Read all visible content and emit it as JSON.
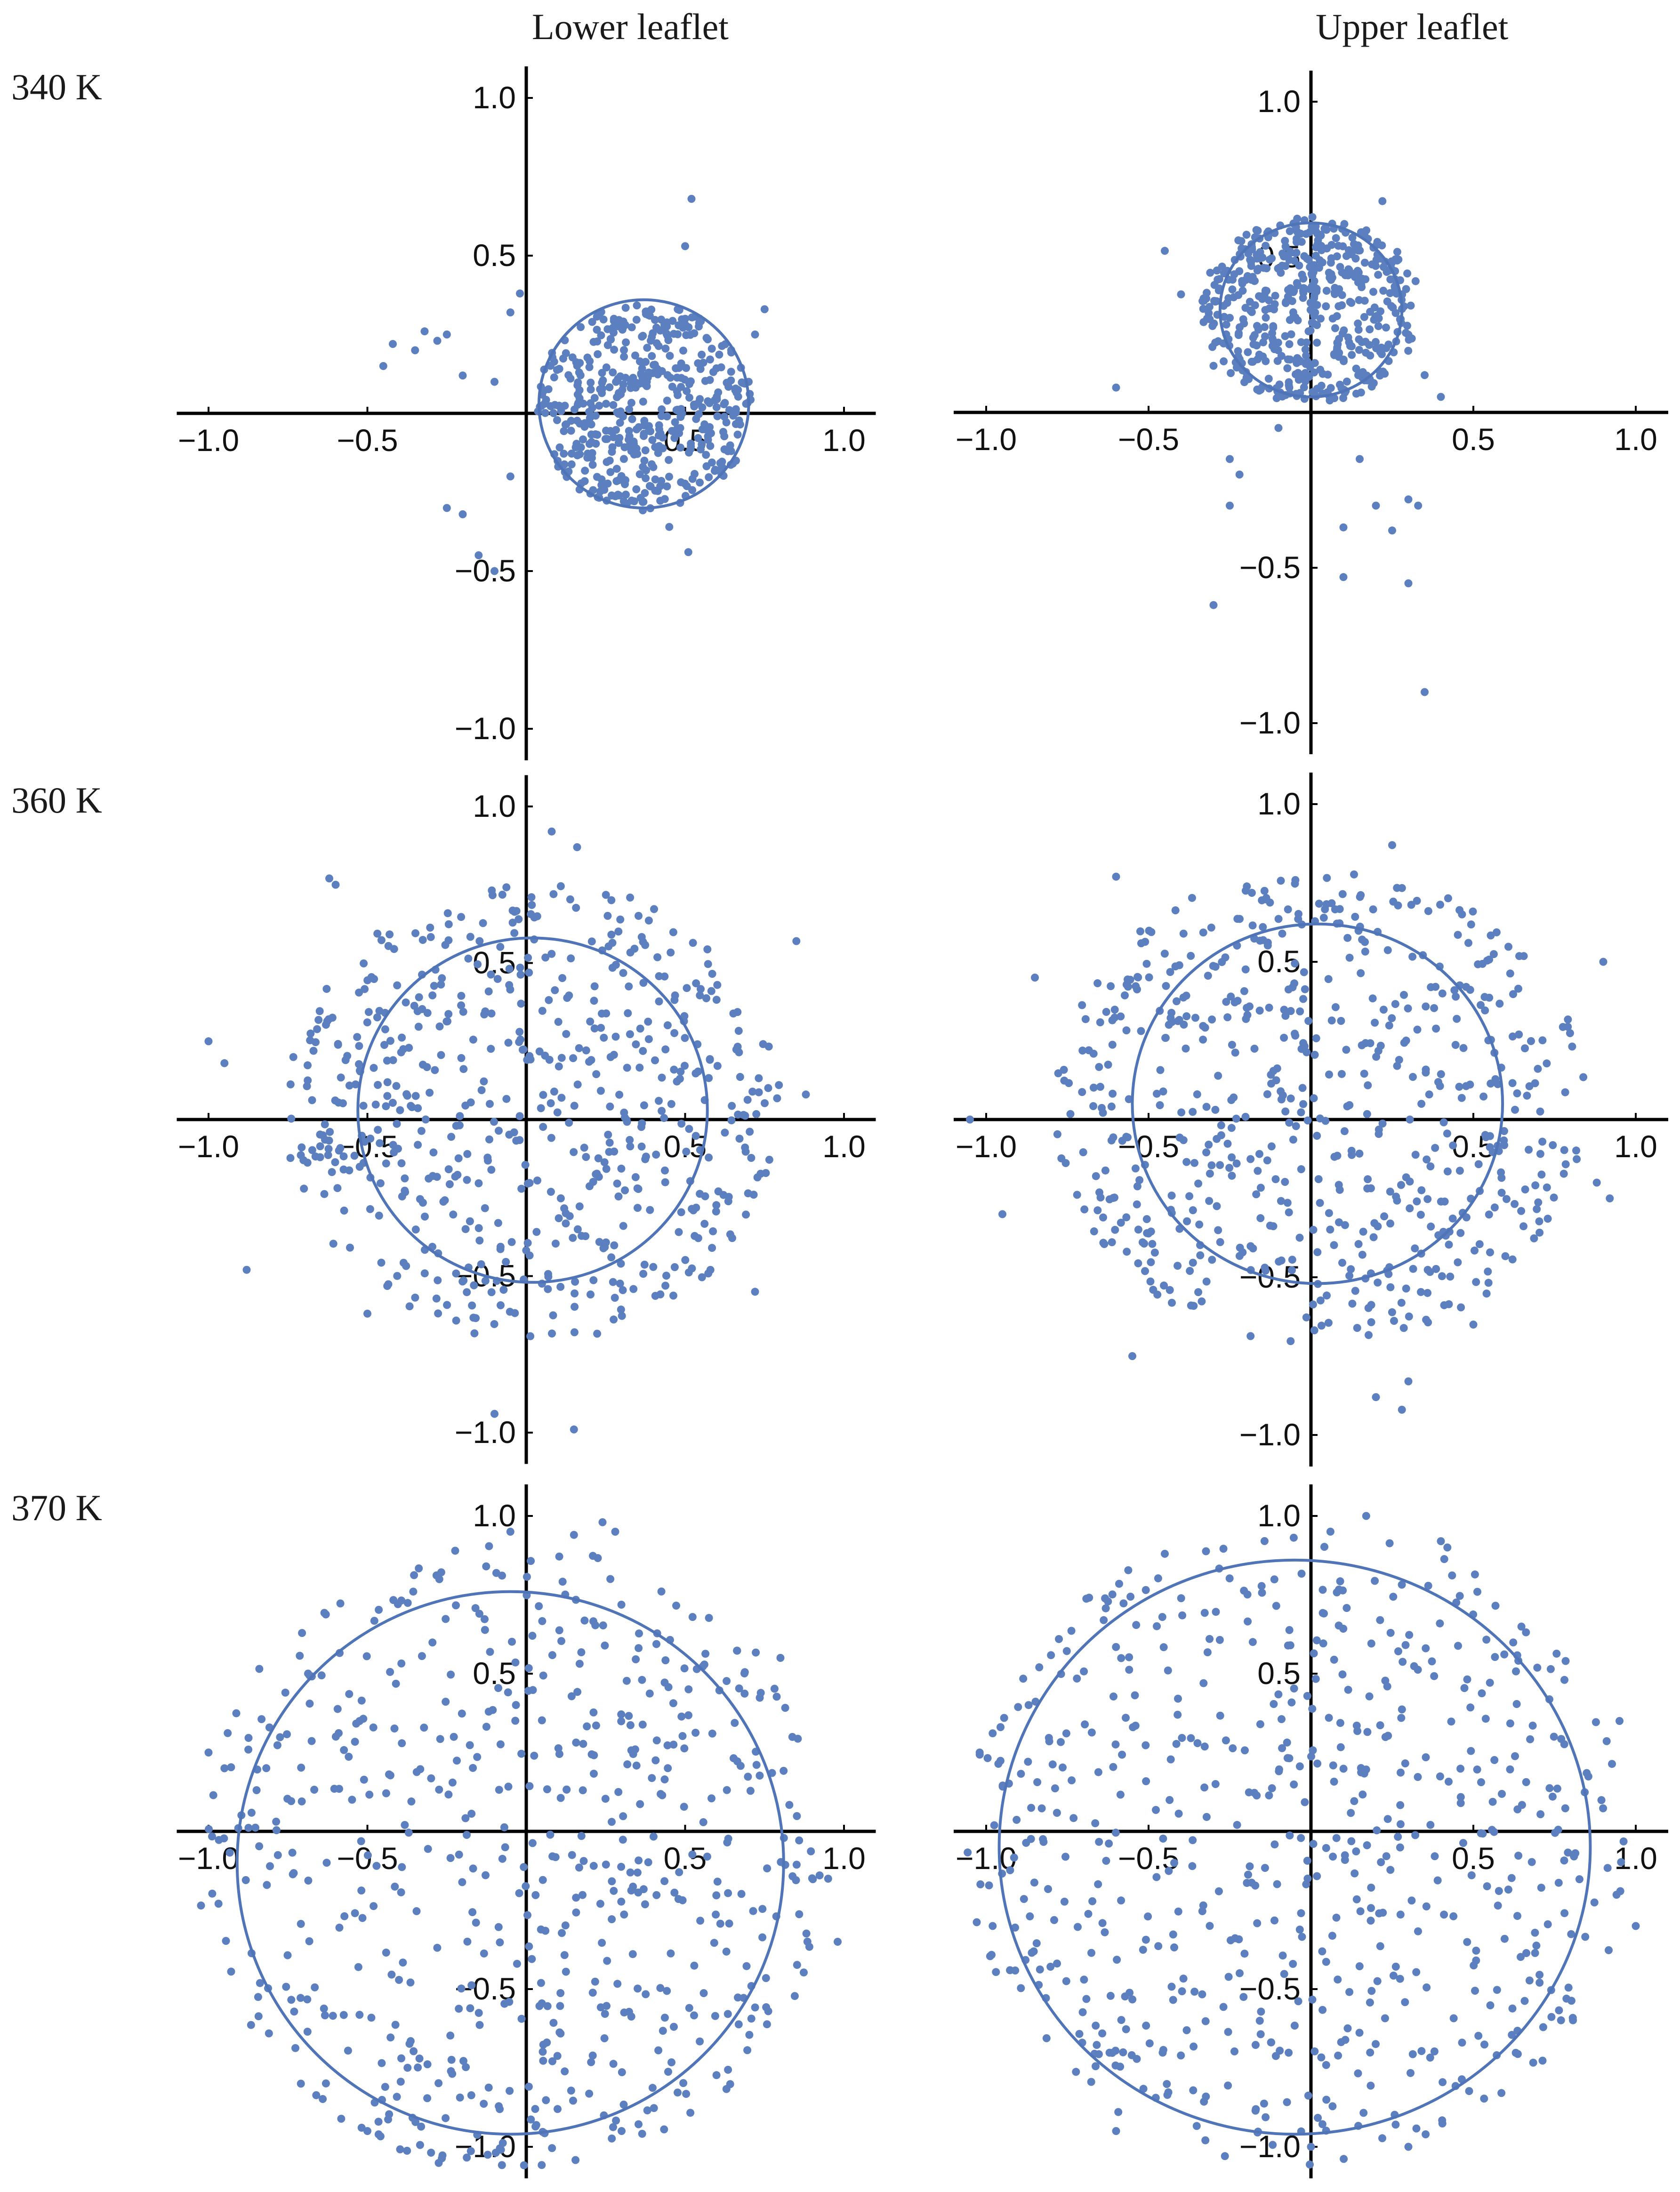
{
  "column_titles": [
    "Lower leaflet",
    "Upper leaflet"
  ],
  "row_titles": [
    "340 K",
    "360 K",
    "370 K"
  ],
  "colors": {
    "points": "#5b7fbf",
    "circle": "#4f74b8",
    "axes": "#000000",
    "text": "#111111"
  },
  "chart_data": [
    {
      "type": "scatter",
      "row": "340 K",
      "column": "Lower leaflet",
      "xlim": [
        -1.1,
        1.1
      ],
      "ylim": [
        -1.1,
        1.1
      ],
      "xticks": [
        "-1.0",
        "-0.5",
        "0.5",
        "1.0"
      ],
      "yticks": [
        "1.0",
        "0.5",
        "-0.5",
        "-1.0"
      ],
      "fit_circle": {
        "cx": 0.37,
        "cy": 0.03,
        "r": 0.33
      },
      "points": {
        "n": 480,
        "seed": 11,
        "cluster": {
          "cx": 0.37,
          "cy": 0.02,
          "rx": 0.34,
          "ry": 0.33
        },
        "outliers": [
          [
            -0.45,
            0.15
          ],
          [
            -0.42,
            0.22
          ],
          [
            -0.35,
            0.2
          ],
          [
            -0.32,
            0.26
          ],
          [
            -0.28,
            0.23
          ],
          [
            -0.25,
            0.25
          ],
          [
            -0.2,
            0.12
          ],
          [
            -0.1,
            0.1
          ],
          [
            -0.05,
            0.32
          ],
          [
            -0.02,
            0.38
          ],
          [
            -0.25,
            -0.3
          ],
          [
            -0.2,
            -0.32
          ],
          [
            -0.15,
            -0.45
          ],
          [
            -0.1,
            -0.5
          ],
          [
            -0.05,
            -0.2
          ],
          [
            0.52,
            0.68
          ],
          [
            0.5,
            0.53
          ],
          [
            0.45,
            -0.36
          ],
          [
            0.51,
            -0.44
          ],
          [
            0.72,
            0.25
          ],
          [
            0.75,
            0.33
          ],
          [
            0.7,
            0.1
          ],
          [
            0.66,
            -0.15
          ]
        ]
      }
    },
    {
      "type": "scatter",
      "row": "340 K",
      "column": "Upper leaflet",
      "xlim": [
        -1.1,
        1.1
      ],
      "ylim": [
        -1.1,
        1.1
      ],
      "xticks": [
        "-1.0",
        "-0.5",
        "0.5",
        "1.0"
      ],
      "yticks": [
        "1.0",
        "0.5",
        "-0.5",
        "-1.0"
      ],
      "fit_circle": {
        "cx": 0.0,
        "cy": 0.33,
        "r": 0.28
      },
      "points": {
        "n": 520,
        "seed": 23,
        "cluster": {
          "cx": 0.0,
          "cy": 0.33,
          "rx": 0.34,
          "ry": 0.3
        },
        "outliers": [
          [
            -0.6,
            0.08
          ],
          [
            -0.45,
            0.52
          ],
          [
            -0.4,
            0.38
          ],
          [
            -0.3,
            0.15
          ],
          [
            -0.25,
            -0.15
          ],
          [
            -0.22,
            -0.2
          ],
          [
            -0.25,
            -0.3
          ],
          [
            -0.3,
            -0.62
          ],
          [
            -0.1,
            -0.05
          ],
          [
            0.2,
            -0.3
          ],
          [
            0.25,
            -0.38
          ],
          [
            0.3,
            -0.28
          ],
          [
            0.33,
            -0.3
          ],
          [
            0.3,
            -0.55
          ],
          [
            0.35,
            -0.9
          ],
          [
            0.1,
            -0.53
          ],
          [
            0.1,
            -0.37
          ],
          [
            0.15,
            -0.15
          ],
          [
            0.4,
            0.05
          ],
          [
            0.22,
            0.68
          ],
          [
            0.3,
            0.25
          ],
          [
            0.35,
            0.12
          ]
        ]
      }
    },
    {
      "type": "scatter",
      "row": "360 K",
      "column": "Lower leaflet",
      "xlim": [
        -1.1,
        1.1
      ],
      "ylim": [
        -1.1,
        1.1
      ],
      "xticks": [
        "-1.0",
        "-0.5",
        "0.5",
        "1.0"
      ],
      "yticks": [
        "1.0",
        "0.5",
        "-0.5",
        "-1.0"
      ],
      "fit_circle": {
        "cx": 0.02,
        "cy": 0.03,
        "r": 0.55
      },
      "points": {
        "n": 600,
        "seed": 37,
        "cluster": {
          "cx": 0.02,
          "cy": 0.03,
          "rx": 0.78,
          "ry": 0.74
        },
        "outliers": [
          [
            -1.0,
            0.25
          ],
          [
            -0.95,
            0.18
          ],
          [
            -0.88,
            -0.48
          ],
          [
            -0.6,
            0.75
          ],
          [
            -0.62,
            0.77
          ],
          [
            0.08,
            0.92
          ],
          [
            0.16,
            0.87
          ],
          [
            0.85,
            0.57
          ],
          [
            0.88,
            0.08
          ],
          [
            0.72,
            -0.55
          ],
          [
            0.15,
            -0.99
          ],
          [
            -0.1,
            -0.94
          ],
          [
            -0.5,
            -0.62
          ]
        ]
      }
    },
    {
      "type": "scatter",
      "row": "360 K",
      "column": "Upper leaflet",
      "xlim": [
        -1.1,
        1.1
      ],
      "ylim": [
        -1.1,
        1.1
      ],
      "xticks": [
        "-1.0",
        "-0.5",
        "0.5",
        "1.0"
      ],
      "yticks": [
        "1.0",
        "0.5",
        "-0.5",
        "-1.0"
      ],
      "fit_circle": {
        "cx": 0.02,
        "cy": 0.05,
        "r": 0.57
      },
      "points": {
        "n": 620,
        "seed": 53,
        "cluster": {
          "cx": 0.03,
          "cy": 0.04,
          "rx": 0.82,
          "ry": 0.76
        },
        "outliers": [
          [
            -1.05,
            0.0
          ],
          [
            -0.95,
            -0.3
          ],
          [
            -0.85,
            0.45
          ],
          [
            -0.6,
            0.77
          ],
          [
            -0.55,
            -0.75
          ],
          [
            0.25,
            0.87
          ],
          [
            0.9,
            0.5
          ],
          [
            0.88,
            -0.2
          ],
          [
            0.92,
            -0.25
          ],
          [
            0.5,
            -0.65
          ],
          [
            0.2,
            -0.88
          ],
          [
            0.28,
            -0.92
          ],
          [
            0.3,
            -0.83
          ]
        ]
      }
    },
    {
      "type": "scatter",
      "row": "370 K",
      "column": "Lower leaflet",
      "xlim": [
        -1.1,
        1.1
      ],
      "ylim": [
        -1.1,
        1.1
      ],
      "xticks": [
        "-1.0",
        "-0.5",
        "0.5",
        "1.0"
      ],
      "yticks": [
        "1.0",
        "0.5",
        "-0.5",
        "-1.0"
      ],
      "fit_circle": {
        "cx": -0.05,
        "cy": -0.1,
        "r": 0.86
      },
      "points": {
        "n": 600,
        "seed": 71,
        "cluster": {
          "cx": -0.04,
          "cy": -0.08,
          "rx": 1.0,
          "ry": 1.0
        },
        "outliers": [
          [
            -0.05,
            0.95
          ],
          [
            0.15,
            0.94
          ],
          [
            0.24,
            0.98
          ],
          [
            0.28,
            0.95
          ],
          [
            -0.95,
            0.2
          ],
          [
            -1.0,
            0.25
          ],
          [
            0.95,
            -0.15
          ],
          [
            0.98,
            -0.35
          ],
          [
            -0.5,
            -0.95
          ],
          [
            0.3,
            -0.95
          ],
          [
            0.8,
            0.55
          ]
        ]
      }
    },
    {
      "type": "scatter",
      "row": "370 K",
      "column": "Upper leaflet",
      "xlim": [
        -1.1,
        1.1
      ],
      "ylim": [
        -1.1,
        1.1
      ],
      "xticks": [
        "-1.0",
        "-0.5",
        "0.5",
        "1.0"
      ],
      "yticks": [
        "1.0",
        "0.5",
        "-0.5",
        "-1.0"
      ],
      "fit_circle": {
        "cx": -0.05,
        "cy": -0.05,
        "r": 0.91
      },
      "points": {
        "n": 620,
        "seed": 89,
        "cluster": {
          "cx": -0.04,
          "cy": -0.04,
          "rx": 1.02,
          "ry": 1.02
        },
        "outliers": [
          [
            -1.02,
            0.25
          ],
          [
            -0.98,
            -0.3
          ],
          [
            0.17,
            1.0
          ],
          [
            0.4,
            0.92
          ],
          [
            0.42,
            0.9
          ],
          [
            0.95,
            0.35
          ],
          [
            1.0,
            -0.3
          ],
          [
            -0.6,
            -0.95
          ],
          [
            0.0,
            -1.0
          ],
          [
            0.3,
            -1.0
          ],
          [
            -0.45,
            0.88
          ]
        ]
      }
    }
  ]
}
